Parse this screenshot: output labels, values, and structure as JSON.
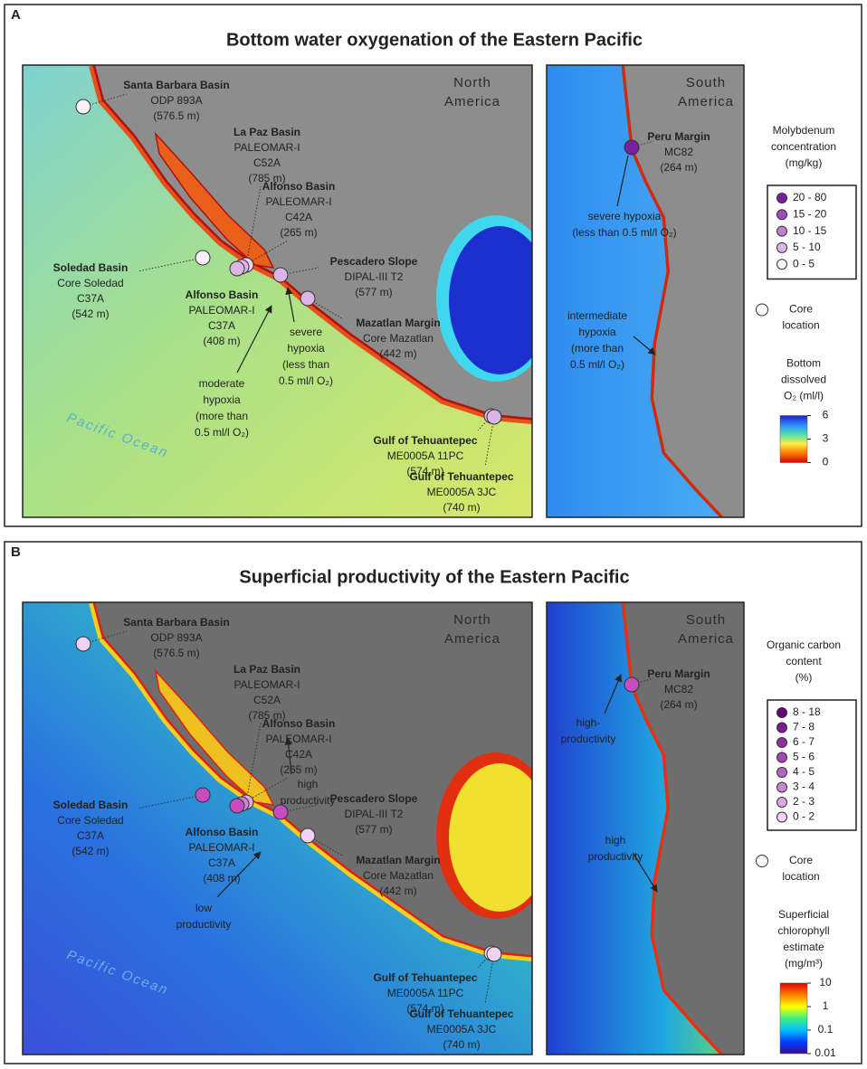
{
  "panels": [
    {
      "letter": "A",
      "title": "Bottom water oxygenation of the Eastern Pacific",
      "north_map": {
        "region": [
          "North",
          "America"
        ],
        "ocean": "Pacific Ocean",
        "sites": [
          {
            "name": "Santa Barbara Basin",
            "lines": [
              "ODP 893A",
              "(576.5 m)"
            ],
            "color": "#f7f2f8"
          },
          {
            "name": "La Paz Basin",
            "lines": [
              "PALEOMAR-I",
              "C52A",
              "(785 m)"
            ],
            "color": "#ead3ef"
          },
          {
            "name": "Alfonso Basin",
            "lines": [
              "PALEOMAR-I",
              "C42A",
              "(265 m)"
            ],
            "color": "#dcb4e6"
          },
          {
            "name": "Soledad Basin",
            "lines": [
              "Core Soledad",
              "C37A",
              "(542 m)"
            ],
            "color": "#f7f2f8"
          },
          {
            "name": "Alfonso Basin",
            "lines": [
              "PALEOMAR-I",
              "C37A",
              "(408 m)"
            ],
            "color": "#dcb4e6"
          },
          {
            "name": "Pescadero Slope",
            "lines": [
              "DIPAL-III T2",
              "(577 m)"
            ],
            "color": "#dcb4e6"
          },
          {
            "name": "Mazatlan Margin",
            "lines": [
              "Core Mazatlan",
              "(442 m)"
            ],
            "color": "#dcb4e6"
          },
          {
            "name": "Gulf of Tehuantepec",
            "lines": [
              "ME0005A 11PC",
              "(574 m)"
            ],
            "color": "#dcb4e6"
          },
          {
            "name": "Gulf of Tehuantepec",
            "lines": [
              "ME0005A 3JC",
              "(740 m)"
            ],
            "color": "#dcb4e6"
          }
        ],
        "annotations": [
          {
            "lines": [
              "severe",
              "hypoxia",
              "(less than",
              "0.5 ml/l O₂)"
            ]
          },
          {
            "lines": [
              "moderate",
              "hypoxia",
              "(more than",
              "0.5 ml/l O₂)"
            ]
          }
        ]
      },
      "south_map": {
        "region": [
          "South",
          "America"
        ],
        "sites": [
          {
            "name": "Peru Margin",
            "lines": [
              "MC82",
              "(264 m)"
            ],
            "color": "#7b1fa2"
          }
        ],
        "annotations": [
          {
            "lines": [
              "severe hypoxia",
              "(less than 0.5 ml/l O₂)"
            ]
          },
          {
            "lines": [
              "intermediate",
              "hypoxia",
              "(more than",
              "0.5 ml/l O₂)"
            ]
          }
        ]
      },
      "legend": {
        "title": [
          "Molybdenum",
          "concentration",
          "(mg/kg)"
        ],
        "classes": [
          {
            "label": "20 - 80",
            "color": "#7b1fa2"
          },
          {
            "label": "15 - 20",
            "color": "#9c4fb8"
          },
          {
            "label": "10 - 15",
            "color": "#c07fcf"
          },
          {
            "label": "5 - 10",
            "color": "#dcb4e6"
          },
          {
            "label": "0 - 5",
            "color": "#f7f2f8"
          }
        ],
        "core_location": [
          "Core",
          "location"
        ],
        "colorbar": {
          "title": [
            "Bottom",
            "dissolved",
            "O₂ (ml/l)"
          ],
          "scale": "linear",
          "lim": [
            0,
            6
          ],
          "ticks": [
            6,
            3,
            0
          ],
          "colors": [
            "#d40000",
            "#ff7a00",
            "#ffee40",
            "#50e0b0",
            "#2f8cff",
            "#1e1ec8"
          ]
        }
      }
    },
    {
      "letter": "B",
      "title": "Superficial productivity of the Eastern Pacific",
      "north_map": {
        "region": [
          "North",
          "America"
        ],
        "ocean": "Pacific Ocean",
        "sites": [
          {
            "name": "Santa Barbara Basin",
            "lines": [
              "ODP 893A",
              "(576.5 m)"
            ],
            "color": "#f0d3f3"
          },
          {
            "name": "La Paz Basin",
            "lines": [
              "PALEOMAR-I",
              "C52A",
              "(785 m)"
            ],
            "color": "#dba9e3"
          },
          {
            "name": "Alfonso Basin",
            "lines": [
              "PALEOMAR-I",
              "C42A",
              "(265 m)"
            ],
            "color": "#c886d4"
          },
          {
            "name": "Soledad Basin",
            "lines": [
              "Core Soledad",
              "C37A",
              "(542 m)"
            ],
            "color": "#c84cc0"
          },
          {
            "name": "Alfonso Basin",
            "lines": [
              "PALEOMAR-I",
              "C37A",
              "(408 m)"
            ],
            "color": "#c84cc0"
          },
          {
            "name": "Pescadero Slope",
            "lines": [
              "DIPAL-III T2",
              "(577 m)"
            ],
            "color": "#c84cc0"
          },
          {
            "name": "Mazatlan Margin",
            "lines": [
              "Core Mazatlan",
              "(442 m)"
            ],
            "color": "#f0d3f3"
          },
          {
            "name": "Gulf of Tehuantepec",
            "lines": [
              "ME0005A 11PC",
              "(574 m)"
            ],
            "color": "#f0d3f3"
          },
          {
            "name": "Gulf of Tehuantepec",
            "lines": [
              "ME0005A 3JC",
              "(740 m)"
            ],
            "color": "#f0d3f3"
          }
        ],
        "annotations": [
          {
            "lines": [
              "high",
              "productivity"
            ]
          },
          {
            "lines": [
              "low",
              "productivity"
            ]
          }
        ]
      },
      "south_map": {
        "region": [
          "South",
          "America"
        ],
        "sites": [
          {
            "name": "Peru Margin",
            "lines": [
              "MC82",
              "(264 m)"
            ],
            "color": "#c84cc0"
          }
        ],
        "annotations": [
          {
            "lines": [
              "high-",
              "productivity"
            ]
          },
          {
            "lines": [
              "high",
              "productivity"
            ]
          }
        ]
      },
      "legend": {
        "title": [
          "Organic carbon",
          "content",
          "(%)"
        ],
        "classes": [
          {
            "label": "8 - 18",
            "color": "#6a0080"
          },
          {
            "label": "7 - 8",
            "color": "#7d1a92"
          },
          {
            "label": "6 - 7",
            "color": "#902fa3"
          },
          {
            "label": "5 - 6",
            "color": "#a347b4"
          },
          {
            "label": "4 - 5",
            "color": "#b563c4"
          },
          {
            "label": "3 - 4",
            "color": "#c886d4"
          },
          {
            "label": "2 - 3",
            "color": "#dba9e3"
          },
          {
            "label": "0 - 2",
            "color": "#f0d3f3"
          }
        ],
        "core_location": [
          "Core",
          "location"
        ],
        "colorbar": {
          "title": [
            "Superficial",
            "chlorophyll",
            "estimate",
            "(mg/m³)"
          ],
          "scale": "log",
          "lim": [
            0.01,
            10
          ],
          "ticks": [
            10,
            1,
            0.1,
            0.01
          ],
          "colors": [
            "#3a0a9a",
            "#0040ff",
            "#00c0ff",
            "#40f080",
            "#ffff00",
            "#ff8000",
            "#e00000"
          ]
        }
      }
    }
  ]
}
